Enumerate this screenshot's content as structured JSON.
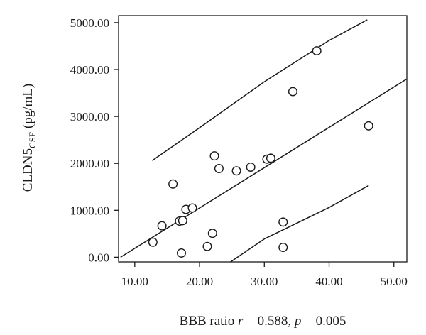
{
  "chart_data": {
    "type": "scatter",
    "title": "",
    "xlabel": {
      "prefix": "BBB ratio ",
      "r_symbol": "r",
      "r_text": " = 0.588, ",
      "p_symbol": "p",
      "p_text": " = 0.005"
    },
    "ylabel": {
      "main": "CLDN5",
      "subscript": "CSF",
      "unit": " (pg/mL)"
    },
    "xlim": [
      7.5,
      52
    ],
    "ylim": [
      -100,
      5150
    ],
    "x_ticks": [
      {
        "value": 10,
        "label": "10.00"
      },
      {
        "value": 20,
        "label": "20.00"
      },
      {
        "value": 30,
        "label": "30.00"
      },
      {
        "value": 40,
        "label": "40.00"
      },
      {
        "value": 50,
        "label": "50.00"
      }
    ],
    "y_ticks": [
      {
        "value": 0,
        "label": "0.00"
      },
      {
        "value": 1000,
        "label": "1000.00"
      },
      {
        "value": 2000,
        "label": "2000.00"
      },
      {
        "value": 3000,
        "label": "3000.00"
      },
      {
        "value": 4000,
        "label": "4000.00"
      },
      {
        "value": 5000,
        "label": "5000.00"
      }
    ],
    "points": [
      {
        "x": 12.8,
        "y": 320
      },
      {
        "x": 14.2,
        "y": 670
      },
      {
        "x": 15.9,
        "y": 1560
      },
      {
        "x": 16.9,
        "y": 770
      },
      {
        "x": 17.4,
        "y": 780
      },
      {
        "x": 17.2,
        "y": 90
      },
      {
        "x": 17.9,
        "y": 1020
      },
      {
        "x": 18.9,
        "y": 1050
      },
      {
        "x": 21.2,
        "y": 230
      },
      {
        "x": 22.0,
        "y": 510
      },
      {
        "x": 22.3,
        "y": 2160
      },
      {
        "x": 23.0,
        "y": 1890
      },
      {
        "x": 25.7,
        "y": 1840
      },
      {
        "x": 27.9,
        "y": 1920
      },
      {
        "x": 30.4,
        "y": 2090
      },
      {
        "x": 31.0,
        "y": 2110
      },
      {
        "x": 32.9,
        "y": 750
      },
      {
        "x": 32.9,
        "y": 210
      },
      {
        "x": 34.4,
        "y": 3530
      },
      {
        "x": 38.1,
        "y": 4400
      },
      {
        "x": 46.1,
        "y": 2800
      }
    ],
    "fit_line": [
      {
        "x": 7.8,
        "y": 0
      },
      {
        "x": 52,
        "y": 3800
      }
    ],
    "confidence_upper": [
      {
        "x": 12.7,
        "y": 2060
      },
      {
        "x": 20,
        "y": 2760
      },
      {
        "x": 30,
        "y": 3740
      },
      {
        "x": 40,
        "y": 4620
      },
      {
        "x": 45.9,
        "y": 5060
      }
    ],
    "confidence_lower": [
      {
        "x": 23.2,
        "y": -250
      },
      {
        "x": 30,
        "y": 390
      },
      {
        "x": 40,
        "y": 1060
      },
      {
        "x": 46.1,
        "y": 1530
      }
    ]
  }
}
